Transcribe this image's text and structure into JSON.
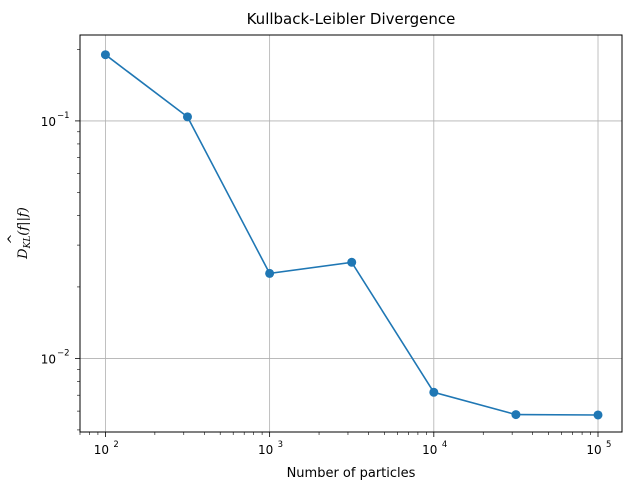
{
  "chart_data": {
    "type": "line",
    "title": "Kullback-Leibler Divergence",
    "xlabel": "Number of particles",
    "ylabel": "D_{KL}(f̂ || f)",
    "x_scale": "log",
    "y_scale": "log",
    "xlim": [
      70,
      140000
    ],
    "ylim": [
      0.0049,
      0.23
    ],
    "x_ticks": [
      {
        "value": 100,
        "base": "10",
        "exp": "2"
      },
      {
        "value": 1000,
        "base": "10",
        "exp": "3"
      },
      {
        "value": 10000,
        "base": "10",
        "exp": "4"
      },
      {
        "value": 100000,
        "base": "10",
        "exp": "5"
      }
    ],
    "y_ticks": [
      {
        "value": 0.1,
        "base": "10",
        "exp": "−1"
      },
      {
        "value": 0.01,
        "base": "10",
        "exp": "−2"
      }
    ],
    "grid": true,
    "series": [
      {
        "color": "#1f77b4",
        "marker": "circle",
        "x": [
          100,
          316,
          1000,
          3162,
          10000,
          31623,
          100000
        ],
        "y": [
          0.19,
          0.104,
          0.0228,
          0.0254,
          0.0072,
          0.0058,
          0.00578
        ]
      }
    ]
  }
}
